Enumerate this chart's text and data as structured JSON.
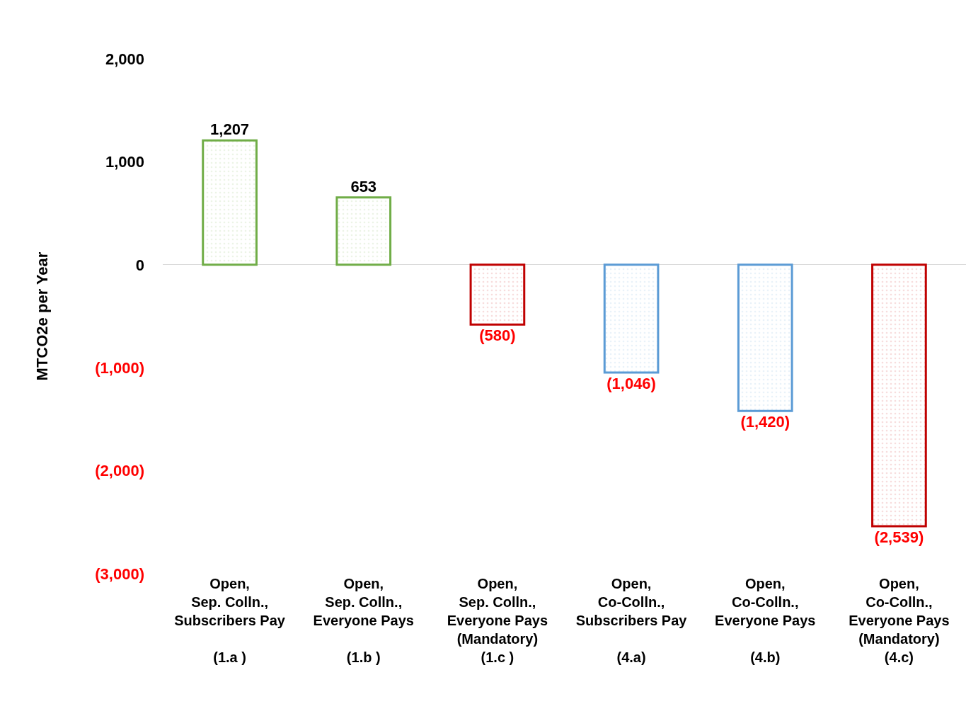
{
  "chart_data": {
    "type": "bar",
    "ylabel": "MTCO2e per Year",
    "categories": [
      "Open,\nSep. Colln.,\nSubscribers Pay\n\n(1.a )",
      "Open,\nSep. Colln.,\nEveryone Pays\n\n(1.b )",
      "Open,\nSep. Colln.,\nEveryone Pays\n(Mandatory)\n(1.c )",
      "Open,\nCo-Colln.,\nSubscribers Pay\n\n(4.a)",
      "Open,\nCo-Colln.,\nEveryone Pays\n\n(4.b)",
      "Open,\nCo-Colln.,\nEveryone Pays\n(Mandatory)\n(4.c)"
    ],
    "values": [
      1207,
      653,
      -580,
      -1046,
      -1420,
      -2539
    ],
    "value_labels": [
      "1,207",
      "653",
      "(580)",
      "(1,046)",
      "(1,420)",
      "(2,539)"
    ],
    "colors": [
      "#70ad47",
      "#70ad47",
      "#c00000",
      "#5b9bd5",
      "#5b9bd5",
      "#c00000"
    ],
    "ylim": [
      -3000,
      2000
    ],
    "yticks": [
      {
        "value": 2000,
        "label": "2,000"
      },
      {
        "value": 1000,
        "label": "1,000"
      },
      0,
      {
        "value": -1000,
        "label": "(1,000)"
      },
      {
        "value": -2000,
        "label": "(2,000)"
      },
      {
        "value": -3000,
        "label": "(3,000)"
      }
    ]
  }
}
